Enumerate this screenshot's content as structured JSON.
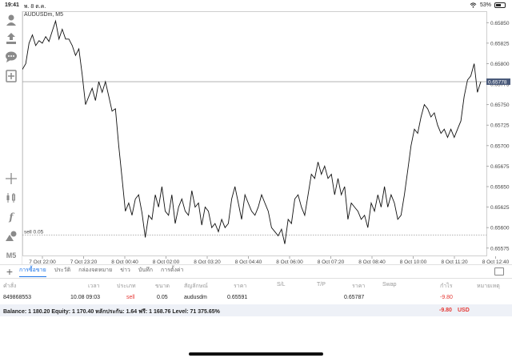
{
  "status": {
    "time": "19:41",
    "date": "พ. 8 ต.ค.",
    "battery": "53%",
    "battery_level": 0.53,
    "wifi_icon": "wifi-icon"
  },
  "chart": {
    "symbol": "AUDUSDm, M5",
    "current_price": "0.65778",
    "order_line_label": "sell 0.05",
    "y_ticks": [
      "0.65850",
      "0.65825",
      "0.65800",
      "0.65775",
      "0.65750",
      "0.65725",
      "0.65700",
      "0.65675",
      "0.65650",
      "0.65625",
      "0.65600",
      "0.65575"
    ],
    "x_ticks": [
      "7 Oct 22:00",
      "7 Oct 23:20",
      "8 Oct 00:40",
      "8 Oct 02:00",
      "8 Oct 03:20",
      "8 Oct 04:40",
      "8 Oct 06:00",
      "8 Oct 07:20",
      "8 Oct 08:40",
      "8 Oct 10:00",
      "8 Oct 11:20",
      "8 Oct 12:40"
    ]
  },
  "chart_data": {
    "type": "line",
    "title": "AUDUSDm, M5",
    "ylim": [
      0.65565,
      0.65862
    ],
    "current_price": 0.65778,
    "order_price": 0.65591,
    "values": [
      0.65793,
      0.658,
      0.65825,
      0.65835,
      0.65822,
      0.65828,
      0.65825,
      0.65833,
      0.65827,
      0.6584,
      0.65852,
      0.6583,
      0.65842,
      0.6583,
      0.6583,
      0.65822,
      0.6581,
      0.65818,
      0.65787,
      0.6575,
      0.6576,
      0.6577,
      0.65755,
      0.65778,
      0.65765,
      0.65778,
      0.6576,
      0.65742,
      0.65745,
      0.657,
      0.6566,
      0.6562,
      0.6563,
      0.65615,
      0.65635,
      0.6564,
      0.65618,
      0.65588,
      0.65615,
      0.6561,
      0.6564,
      0.65625,
      0.6565,
      0.6562,
      0.65615,
      0.6564,
      0.65605,
      0.65625,
      0.65635,
      0.6562,
      0.65615,
      0.65645,
      0.65625,
      0.6563,
      0.65603,
      0.65625,
      0.6562,
      0.656,
      0.65605,
      0.65595,
      0.6561,
      0.656,
      0.65605,
      0.65635,
      0.6565,
      0.6563,
      0.6561,
      0.6564,
      0.6563,
      0.6562,
      0.65615,
      0.65625,
      0.6564,
      0.6563,
      0.6562,
      0.656,
      0.65595,
      0.6559,
      0.65598,
      0.6558,
      0.6561,
      0.65605,
      0.65635,
      0.6564,
      0.65625,
      0.65615,
      0.6564,
      0.65665,
      0.6566,
      0.6568,
      0.65665,
      0.65675,
      0.6566,
      0.65665,
      0.6564,
      0.6566,
      0.6564,
      0.6565,
      0.6561,
      0.6563,
      0.65625,
      0.6562,
      0.6561,
      0.65615,
      0.656,
      0.6563,
      0.6562,
      0.6564,
      0.65625,
      0.6565,
      0.65625,
      0.6564,
      0.6563,
      0.6561,
      0.65615,
      0.6564,
      0.6567,
      0.657,
      0.6572,
      0.65715,
      0.65735,
      0.6575,
      0.65745,
      0.65735,
      0.6574,
      0.65725,
      0.65715,
      0.6572,
      0.6571,
      0.6572,
      0.6571,
      0.6572,
      0.6573,
      0.6576,
      0.6578,
      0.65785,
      0.658,
      0.65765,
      0.65778
    ]
  },
  "toolbar": {
    "items": [
      "person-icon",
      "trade-icon",
      "chat-icon",
      "add-document-icon"
    ],
    "bottom_items": [
      "crosshair-icon",
      "candles-icon",
      "function-icon",
      "objects-icon"
    ],
    "timeframe": "M5"
  },
  "tabs": {
    "add_label": "+",
    "items": [
      {
        "label": "การซื้อขาย",
        "active": true
      },
      {
        "label": "ประวัติ",
        "active": false
      },
      {
        "label": "กล่องจดหมาย",
        "active": false
      },
      {
        "label": "ข่าว",
        "active": false
      },
      {
        "label": "บันทึก",
        "active": false
      },
      {
        "label": "การตั้งค่า",
        "active": false
      }
    ]
  },
  "table": {
    "headers": [
      "คำสั่ง",
      "เวลา",
      "ประเภท",
      "ขนาด",
      "สัญลักษณ์",
      "ราคา",
      "S/L",
      "T/P",
      "ราคา",
      "Swap",
      "กำไร",
      "หมายเหตุ"
    ],
    "row": {
      "order": "849868553",
      "time": "10.08 09:03",
      "type": "sell",
      "size": "0.05",
      "symbol": "audusdm",
      "price": "0.65591",
      "sl": "",
      "tp": "",
      "current_price": "0.65787",
      "swap": "",
      "profit": "-9.80",
      "comment": ""
    }
  },
  "balance": {
    "text": "Balance: 1 180.20 Equity: 1 170.40 หลักประกัน: 1.64 ฟรี: 1 168.76 Level: 71 375.65%",
    "profit": "-9.80",
    "currency": "USD"
  }
}
